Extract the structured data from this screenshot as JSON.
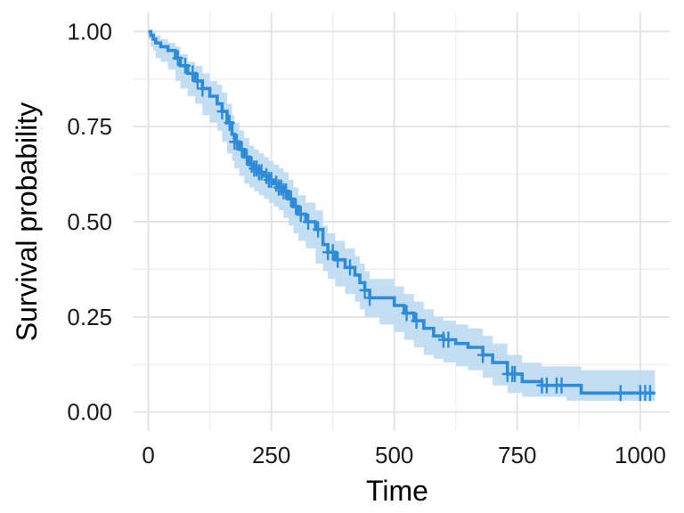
{
  "chart_data": {
    "type": "line",
    "subtype": "kaplan-meier",
    "xlabel": "Time",
    "ylabel": "Survival probability",
    "xlim": [
      -30,
      1060
    ],
    "ylim": [
      -0.05,
      1.05
    ],
    "x_ticks": [
      0,
      250,
      500,
      750,
      1000
    ],
    "x_tick_labels": [
      "0",
      "250",
      "500",
      "750",
      "1000"
    ],
    "y_ticks": [
      0.0,
      0.25,
      0.5,
      0.75,
      1.0
    ],
    "y_tick_labels": [
      "0.00",
      "0.25",
      "0.50",
      "0.75",
      "1.00"
    ],
    "grid": true,
    "legend": "none",
    "colors": {
      "line": "#2e8bd8",
      "band": "#bcdaf2",
      "grid_major": "#e3e3e3",
      "grid_minor": "#efefef"
    },
    "series": [
      {
        "step_x": [
          0,
          5,
          10,
          15,
          25,
          40,
          55,
          65,
          80,
          95,
          110,
          125,
          140,
          150,
          160,
          170,
          175,
          185,
          195,
          205,
          215,
          225,
          235,
          245,
          255,
          265,
          275,
          285,
          295,
          305,
          320,
          340,
          355,
          365,
          380,
          400,
          420,
          430,
          440,
          450,
          470,
          500,
          520,
          540,
          560,
          580,
          600,
          625,
          650,
          680,
          700,
          730,
          760,
          800,
          850,
          880,
          900,
          1030
        ],
        "step_y": [
          1.0,
          0.99,
          0.98,
          0.97,
          0.96,
          0.95,
          0.93,
          0.91,
          0.89,
          0.87,
          0.85,
          0.83,
          0.81,
          0.79,
          0.76,
          0.73,
          0.71,
          0.69,
          0.67,
          0.65,
          0.64,
          0.63,
          0.62,
          0.61,
          0.6,
          0.59,
          0.58,
          0.56,
          0.54,
          0.52,
          0.5,
          0.48,
          0.44,
          0.42,
          0.4,
          0.38,
          0.36,
          0.34,
          0.32,
          0.3,
          0.3,
          0.28,
          0.26,
          0.24,
          0.22,
          0.2,
          0.19,
          0.18,
          0.17,
          0.15,
          0.13,
          0.1,
          0.08,
          0.07,
          0.07,
          0.05,
          0.05,
          0.05
        ],
        "lower": [
          1.0,
          0.98,
          0.96,
          0.95,
          0.93,
          0.92,
          0.9,
          0.87,
          0.85,
          0.83,
          0.81,
          0.78,
          0.76,
          0.74,
          0.71,
          0.68,
          0.66,
          0.64,
          0.62,
          0.6,
          0.59,
          0.58,
          0.57,
          0.56,
          0.55,
          0.54,
          0.53,
          0.51,
          0.49,
          0.47,
          0.45,
          0.43,
          0.39,
          0.37,
          0.35,
          0.33,
          0.31,
          0.29,
          0.27,
          0.25,
          0.25,
          0.23,
          0.21,
          0.19,
          0.17,
          0.15,
          0.14,
          0.13,
          0.12,
          0.11,
          0.09,
          0.07,
          0.05,
          0.04,
          0.04,
          0.03,
          0.03,
          0.03
        ],
        "upper": [
          1.0,
          1.0,
          1.0,
          0.99,
          0.98,
          0.97,
          0.96,
          0.94,
          0.92,
          0.91,
          0.89,
          0.87,
          0.86,
          0.84,
          0.81,
          0.78,
          0.76,
          0.74,
          0.72,
          0.7,
          0.69,
          0.68,
          0.67,
          0.66,
          0.65,
          0.64,
          0.63,
          0.61,
          0.59,
          0.57,
          0.55,
          0.53,
          0.49,
          0.47,
          0.45,
          0.43,
          0.41,
          0.39,
          0.37,
          0.35,
          0.35,
          0.33,
          0.31,
          0.29,
          0.27,
          0.25,
          0.24,
          0.23,
          0.22,
          0.2,
          0.18,
          0.15,
          0.13,
          0.12,
          0.12,
          0.11,
          0.11,
          0.11
        ],
        "censor_x": [
          60,
          75,
          90,
          100,
          110,
          150,
          165,
          175,
          180,
          190,
          200,
          210,
          215,
          220,
          225,
          230,
          240,
          245,
          250,
          260,
          265,
          270,
          275,
          280,
          290,
          300,
          310,
          325,
          345,
          365,
          375,
          385,
          410,
          440,
          450,
          525,
          545,
          600,
          610,
          680,
          730,
          740,
          745,
          800,
          810,
          830,
          840,
          960,
          1000,
          1010,
          1020
        ]
      }
    ]
  }
}
